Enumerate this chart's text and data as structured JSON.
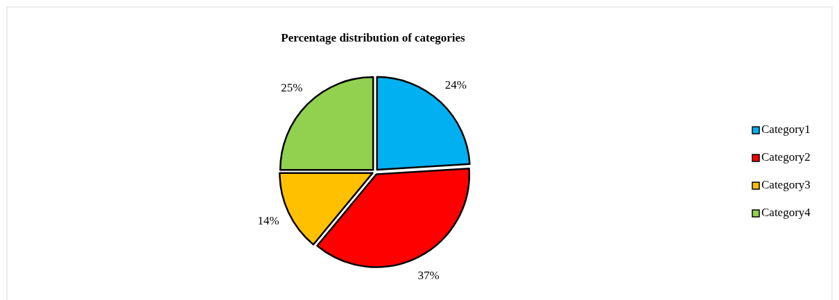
{
  "chart_data": {
    "type": "pie",
    "title": "Percentage distribution of categories",
    "categories": [
      "Category1",
      "Category2",
      "Category3",
      "Category4"
    ],
    "values": [
      24,
      37,
      14,
      25
    ],
    "value_labels": [
      "24%",
      "37%",
      "14%",
      "25%"
    ],
    "colors": [
      "#00b0f0",
      "#ff0000",
      "#ffc000",
      "#92d050"
    ],
    "legend": "right"
  }
}
